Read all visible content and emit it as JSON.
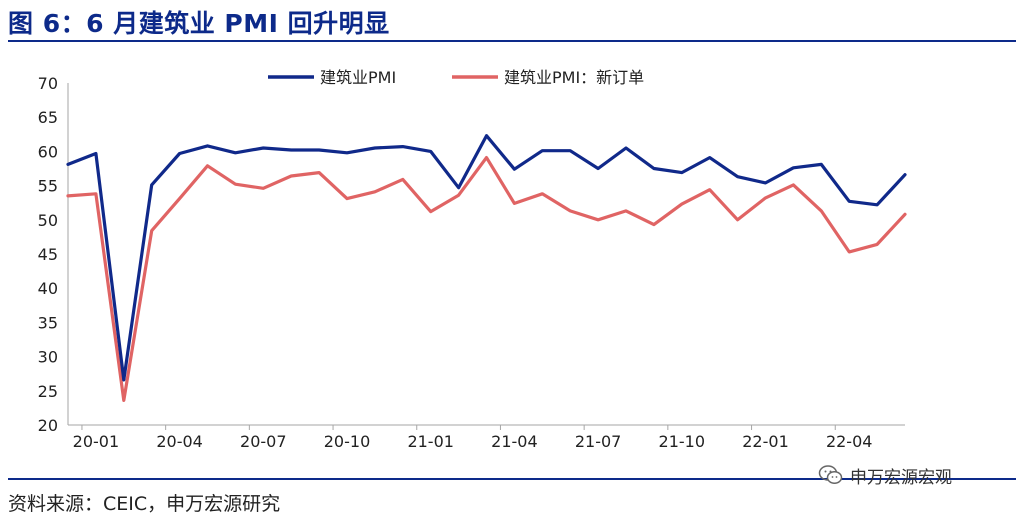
{
  "header": {
    "title": "图 6：6 月建筑业 PMI 回升明显"
  },
  "footer": {
    "source": "资料来源：CEIC，申万宏源研究",
    "watermark": "申万宏源宏观",
    "watermark_icon": "wechat-icon"
  },
  "colors": {
    "accent": "#0d2a8a",
    "series1": "#10298a",
    "series2": "#e06464"
  },
  "chart_data": {
    "type": "line",
    "title": "6 月建筑业 PMI 回升明显",
    "ylim": [
      20,
      70
    ],
    "yticks": [
      20,
      25,
      30,
      35,
      40,
      45,
      50,
      55,
      60,
      65,
      70
    ],
    "xtick_labels": [
      "20-01",
      "20-04",
      "20-07",
      "20-10",
      "21-01",
      "21-04",
      "21-07",
      "21-10",
      "22-01",
      "22-04"
    ],
    "x": [
      "19-12",
      "20-01",
      "20-02",
      "20-03",
      "20-04",
      "20-05",
      "20-06",
      "20-07",
      "20-08",
      "20-09",
      "20-10",
      "20-11",
      "20-12",
      "21-01",
      "21-02",
      "21-03",
      "21-04",
      "21-05",
      "21-06",
      "21-07",
      "21-08",
      "21-09",
      "21-10",
      "21-11",
      "21-12",
      "22-01",
      "22-02",
      "22-03",
      "22-04",
      "22-05",
      "22-06"
    ],
    "legend_position": "top-center",
    "grid": false,
    "series": [
      {
        "name": "建筑业PMI",
        "values": [
          58.1,
          59.7,
          26.6,
          55.1,
          59.7,
          60.8,
          59.8,
          60.5,
          60.2,
          60.2,
          59.8,
          60.5,
          60.7,
          60.0,
          54.7,
          62.3,
          57.4,
          60.1,
          60.1,
          57.5,
          60.5,
          57.5,
          56.9,
          59.1,
          56.3,
          55.4,
          57.6,
          58.1,
          52.7,
          52.2,
          56.6
        ]
      },
      {
        "name": "建筑业PMI：新订单",
        "values": [
          53.5,
          53.8,
          23.6,
          48.4,
          53.1,
          57.9,
          55.2,
          54.6,
          56.4,
          56.9,
          53.1,
          54.1,
          55.9,
          51.2,
          53.6,
          59.1,
          52.4,
          53.8,
          51.3,
          50.0,
          51.3,
          49.3,
          52.3,
          54.4,
          50.0,
          53.2,
          55.1,
          51.3,
          45.3,
          46.4,
          50.8
        ]
      }
    ]
  }
}
